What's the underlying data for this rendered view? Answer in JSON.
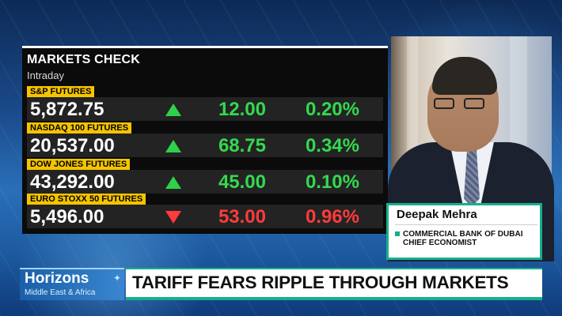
{
  "markets": {
    "title": "MARKETS CHECK",
    "subtitle": "Intraday",
    "rows": [
      {
        "label": "S&P FUTURES",
        "price": "5,872.75",
        "direction": "up",
        "change": "12.00",
        "pct": "0.20%"
      },
      {
        "label": "NASDAQ 100 FUTURES",
        "price": "20,537.00",
        "direction": "up",
        "change": "68.75",
        "pct": "0.34%"
      },
      {
        "label": "DOW JONES FUTURES",
        "price": "43,292.00",
        "direction": "up",
        "change": "45.00",
        "pct": "0.10%"
      },
      {
        "label": "EURO STOXX 50 FUTURES",
        "price": "5,496.00",
        "direction": "down",
        "change": "53.00",
        "pct": "0.96%"
      }
    ],
    "colors": {
      "up": "#33d94f",
      "down": "#ff3b3b",
      "label_bg": "#f5c400"
    }
  },
  "guest": {
    "name": "Deepak Mehra",
    "organization": "COMMERCIAL BANK OF DUBAI",
    "role": "CHIEF ECONOMIST"
  },
  "brand": {
    "title": "Horizons",
    "subtitle": "Middle East & Africa",
    "icon": "sparkle-icon"
  },
  "headline": "TARIFF FEARS RIPPLE THROUGH MARKETS",
  "accent_color": "#16b08a"
}
